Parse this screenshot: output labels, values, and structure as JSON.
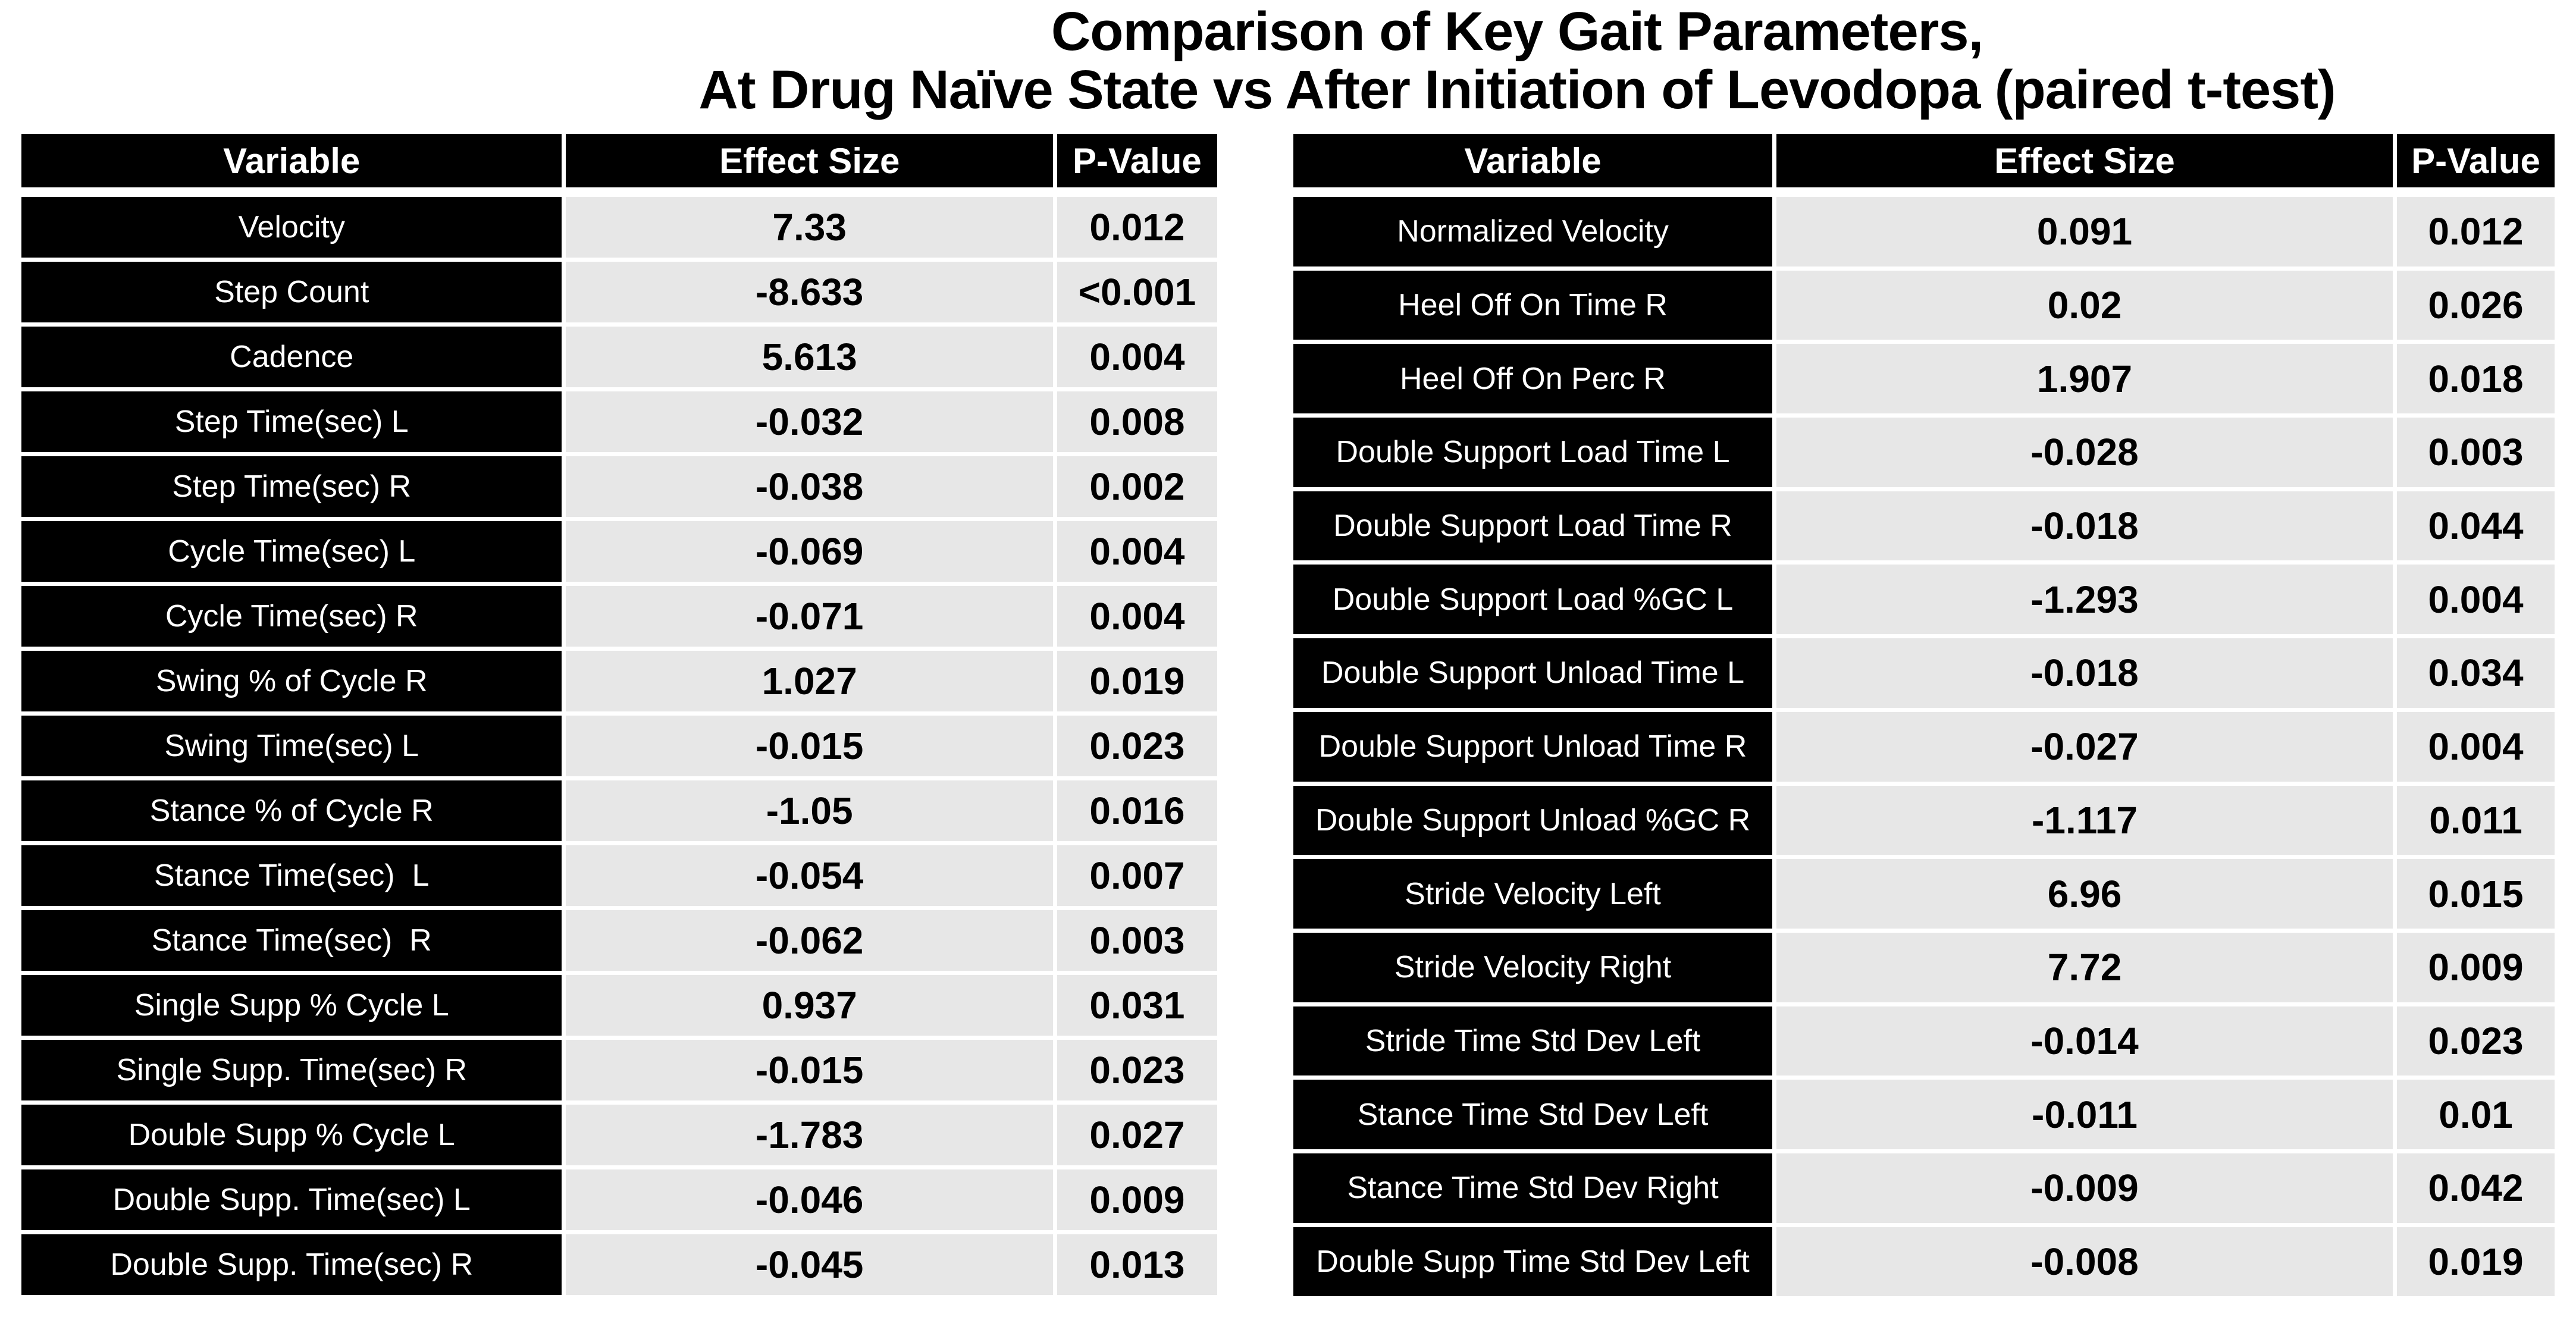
{
  "title": {
    "line1": "Comparison of Key Gait Parameters,",
    "line2": "At Drug Naïve State vs After Initiation of Levodopa (paired t-test)"
  },
  "colors": {
    "page_bg": "#ffffff",
    "header_bg": "#000000",
    "header_text": "#ffffff",
    "variable_bg": "#000000",
    "variable_text": "#ffffff",
    "value_bg": "#e7e7e7",
    "value_text": "#000000"
  },
  "chart_data": [
    {
      "type": "table",
      "position": "left",
      "columns": [
        "Variable",
        "Effect Size",
        "P-Value"
      ],
      "rows": [
        [
          "Velocity",
          "7.33",
          "0.012"
        ],
        [
          "Step Count",
          "-8.633",
          "<0.001"
        ],
        [
          "Cadence",
          "5.613",
          "0.004"
        ],
        [
          "Step Time(sec) L",
          "-0.032",
          "0.008"
        ],
        [
          "Step Time(sec) R",
          "-0.038",
          "0.002"
        ],
        [
          "Cycle Time(sec) L",
          "-0.069",
          "0.004"
        ],
        [
          "Cycle Time(sec) R",
          "-0.071",
          "0.004"
        ],
        [
          "Swing % of Cycle R",
          "1.027",
          "0.019"
        ],
        [
          "Swing Time(sec) L",
          "-0.015",
          "0.023"
        ],
        [
          "Stance % of Cycle R",
          "-1.05",
          "0.016"
        ],
        [
          "Stance Time(sec)  L",
          "-0.054",
          "0.007"
        ],
        [
          "Stance Time(sec)  R",
          "-0.062",
          "0.003"
        ],
        [
          "Single Supp % Cycle L",
          "0.937",
          "0.031"
        ],
        [
          "Single Supp. Time(sec) R",
          "-0.015",
          "0.023"
        ],
        [
          "Double Supp % Cycle L",
          "-1.783",
          "0.027"
        ],
        [
          "Double Supp. Time(sec) L",
          "-0.046",
          "0.009"
        ],
        [
          "Double Supp. Time(sec) R",
          "-0.045",
          "0.013"
        ]
      ]
    },
    {
      "type": "table",
      "position": "right",
      "columns": [
        "Variable",
        "Effect Size",
        "P-Value"
      ],
      "rows": [
        [
          "Normalized Velocity",
          "0.091",
          "0.012"
        ],
        [
          "Heel Off On Time R",
          "0.02",
          "0.026"
        ],
        [
          "Heel Off On Perc R",
          "1.907",
          "0.018"
        ],
        [
          "Double Support Load Time L",
          "-0.028",
          "0.003"
        ],
        [
          "Double Support Load Time R",
          "-0.018",
          "0.044"
        ],
        [
          "Double Support Load %GC L",
          "-1.293",
          "0.004"
        ],
        [
          "Double Support Unload Time L",
          "-0.018",
          "0.034"
        ],
        [
          "Double Support Unload Time R",
          "-0.027",
          "0.004"
        ],
        [
          "Double Support Unload %GC R",
          "-1.117",
          "0.011"
        ],
        [
          "Stride Velocity Left",
          "6.96",
          "0.015"
        ],
        [
          "Stride Velocity Right",
          "7.72",
          "0.009"
        ],
        [
          "Stride Time Std Dev Left",
          "-0.014",
          "0.023"
        ],
        [
          "Stance Time Std Dev Left",
          "-0.011",
          "0.01"
        ],
        [
          "Stance Time Std Dev Right",
          "-0.009",
          "0.042"
        ],
        [
          "Double Supp Time Std Dev Left",
          "-0.008",
          "0.019"
        ]
      ]
    }
  ]
}
